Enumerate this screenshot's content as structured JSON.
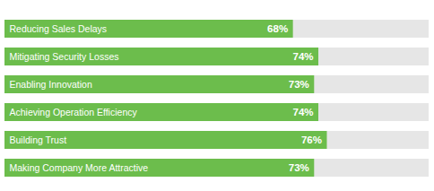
{
  "chart_data": {
    "type": "bar",
    "orientation": "horizontal",
    "categories": [
      "Reducing Sales Delays",
      "Mitigating Security Losses",
      "Enabling Innovation",
      "Achieving Operation Efficiency",
      "Building Trust",
      "Making Company More Attractive"
    ],
    "values": [
      68,
      74,
      73,
      74,
      76,
      73
    ],
    "value_labels": [
      "68%",
      "74%",
      "73%",
      "74%",
      "76%",
      "73%"
    ],
    "color": "#6cbd4c",
    "xlim": [
      0,
      100
    ],
    "data_labels": true,
    "tick_labels": false,
    "grid": false
  }
}
